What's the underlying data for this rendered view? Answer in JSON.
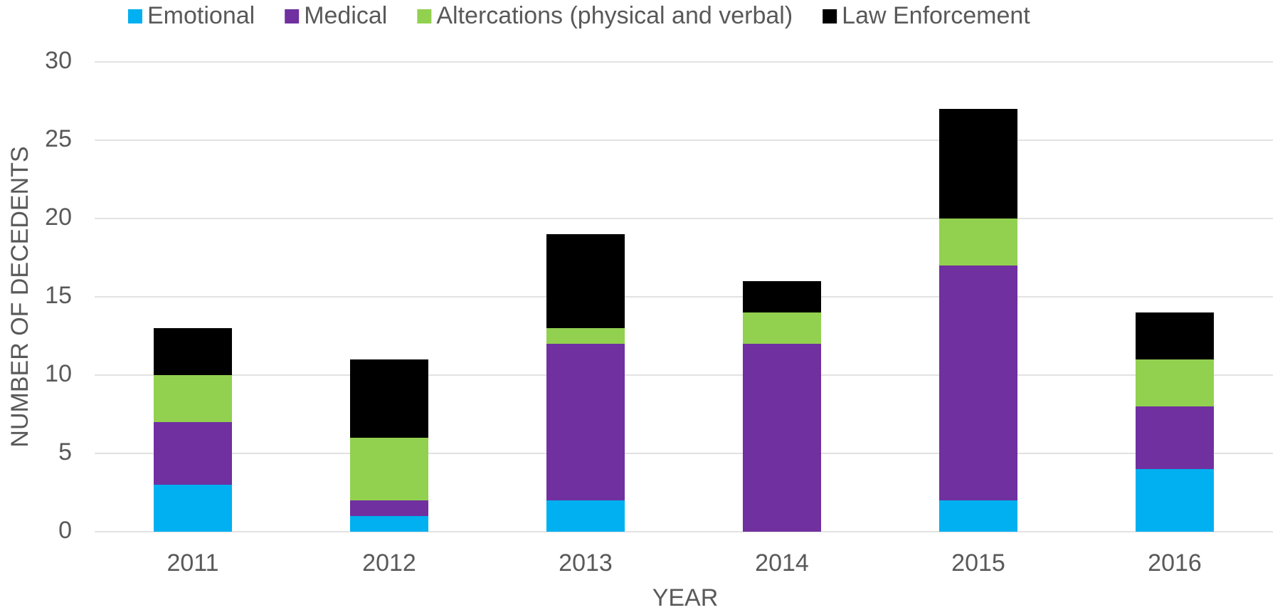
{
  "chart_data": {
    "type": "stacked_bar",
    "x_label": "YEAR",
    "y_label": "NUMBER OF DECEDENTS",
    "categories": [
      "2011",
      "2012",
      "2013",
      "2014",
      "2015",
      "2016"
    ],
    "series": [
      {
        "name": "Emotional",
        "color": "#00b0f0",
        "values": [
          3,
          1,
          2,
          0,
          2,
          4
        ]
      },
      {
        "name": "Medical",
        "color": "#7030a0",
        "values": [
          4,
          1,
          10,
          12,
          15,
          4
        ]
      },
      {
        "name": "Altercations (physical and verbal)",
        "color": "#92d050",
        "values": [
          3,
          4,
          1,
          2,
          3,
          3
        ]
      },
      {
        "name": "Law Enforcement",
        "color": "#000000",
        "values": [
          3,
          5,
          6,
          2,
          7,
          3
        ]
      }
    ],
    "ylim": [
      0,
      30
    ],
    "yticks": [
      0,
      5,
      10,
      15,
      20,
      25,
      30
    ],
    "grid": true,
    "legend": "top"
  }
}
